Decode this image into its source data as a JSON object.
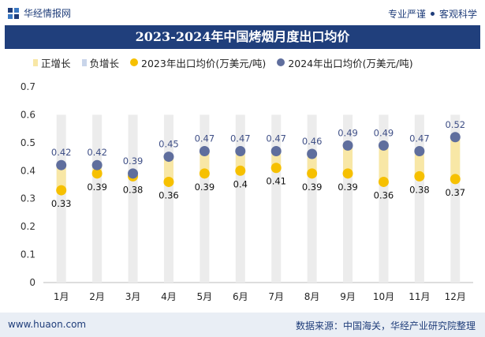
{
  "header": {
    "brand": "华经情报网",
    "tagline_left": "专业严谨",
    "tagline_right": "客观科学"
  },
  "footer": {
    "website": "www.huaon.com",
    "source": "数据来源：中国海关，华经产业研究院整理"
  },
  "colors": {
    "positive": "#f8e7a6",
    "negative": "#c9d5ea",
    "series2023": "#f6c000",
    "series2024": "#5f6e9d",
    "column_bg": "#ececec",
    "title_bar": "#203f7c"
  },
  "chart_data": {
    "type": "line",
    "title": "2023-2024年中国烤烟月度出口均价",
    "categories": [
      "1月",
      "2月",
      "3月",
      "4月",
      "5月",
      "6月",
      "7月",
      "8月",
      "9月",
      "10月",
      "11月",
      "12月"
    ],
    "ylim": [
      0,
      0.7
    ],
    "yticks": [
      "0",
      "0.1",
      "0.2",
      "0.3",
      "0.4",
      "0.5",
      "0.6",
      "0.7"
    ],
    "legend": [
      "正增长",
      "负增长",
      "2023年出口均价(万美元/吨)",
      "2024年出口均价(万美元/吨)"
    ],
    "legend_position": "top",
    "series": [
      {
        "name": "2023年出口均价(万美元/吨)",
        "values": [
          0.33,
          0.39,
          0.38,
          0.36,
          0.39,
          0.4,
          0.41,
          0.39,
          0.39,
          0.36,
          0.38,
          0.37
        ]
      },
      {
        "name": "2024年出口均价(万美元/吨)",
        "values": [
          0.42,
          0.42,
          0.39,
          0.45,
          0.47,
          0.47,
          0.47,
          0.46,
          0.49,
          0.49,
          0.47,
          0.52
        ]
      }
    ],
    "labels_2023": [
      "0.33",
      "0.39",
      "0.38",
      "0.36",
      "0.39",
      "0.4",
      "0.41",
      "0.39",
      "0.39",
      "0.36",
      "0.38",
      "0.37"
    ],
    "labels_2024": [
      "0.42",
      "0.42",
      "0.39",
      "0.45",
      "0.47",
      "0.47",
      "0.47",
      "0.46",
      "0.49",
      "0.49",
      "0.47",
      "0.52"
    ],
    "grid": false
  }
}
